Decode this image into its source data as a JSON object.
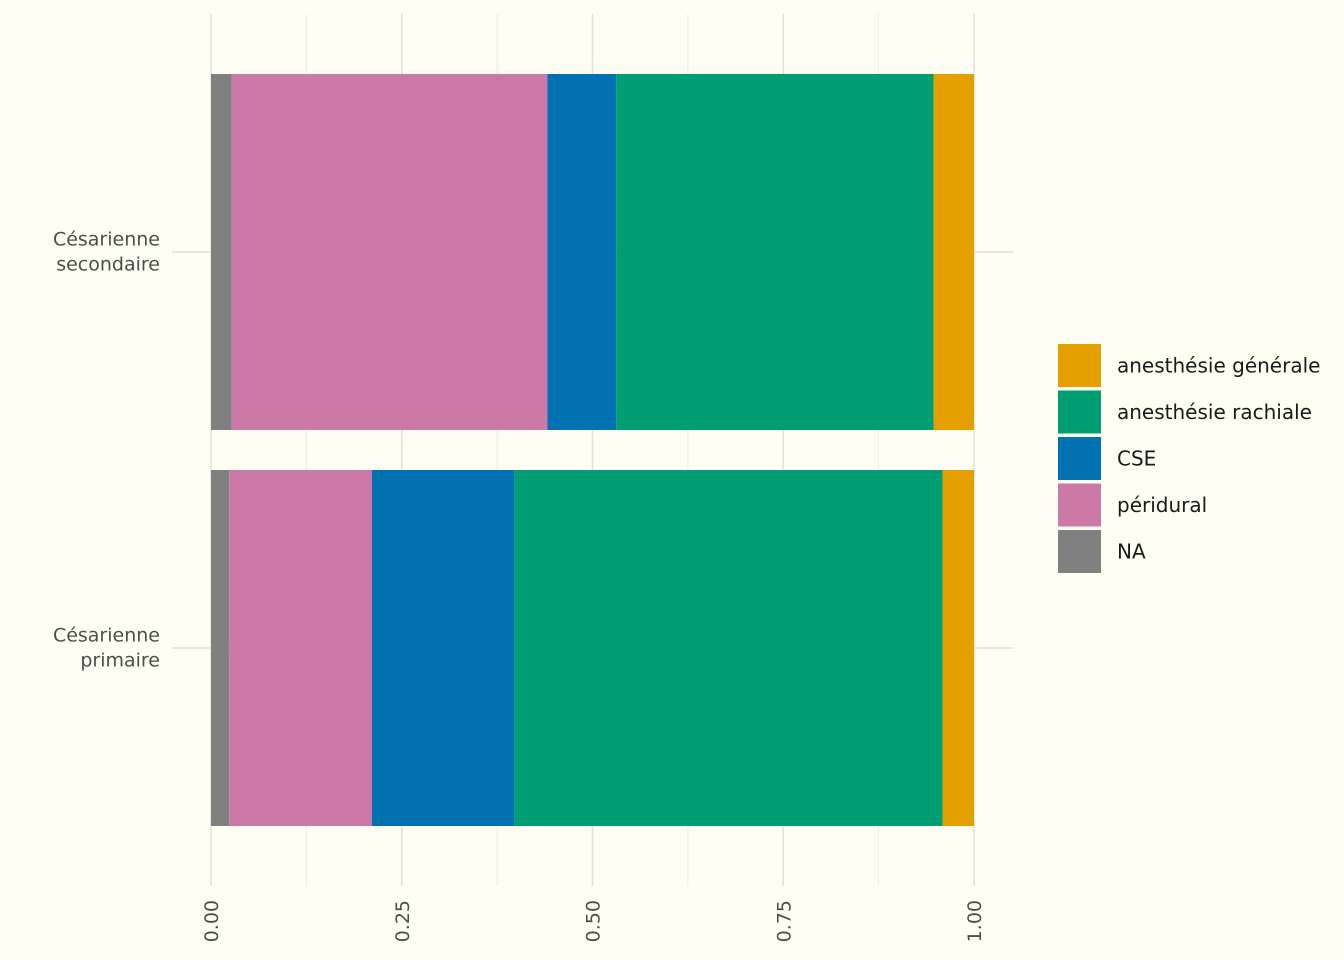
{
  "chart_data": {
    "type": "bar",
    "orientation": "horizontal",
    "stacked": true,
    "categories": [
      "Césarienne\nsecondaire",
      "Césarienne\nprimaire"
    ],
    "xlim": [
      0,
      1
    ],
    "x_ticks": [
      "0.00",
      "0.25",
      "0.50",
      "0.75",
      "1.00"
    ],
    "x_tick_values": [
      0,
      0.25,
      0.5,
      0.75,
      1
    ],
    "grid": true,
    "legend_position": "right",
    "series": [
      {
        "name": "NA",
        "color": "#808080",
        "values": [
          0.027,
          0.024
        ]
      },
      {
        "name": "péridural",
        "color": "#cc79a7",
        "values": [
          0.414,
          0.187
        ]
      },
      {
        "name": "CSE",
        "color": "#0072b2",
        "values": [
          0.09,
          0.187
        ]
      },
      {
        "name": "anesthésie rachiale",
        "color": "#009e73",
        "values": [
          0.416,
          0.561
        ]
      },
      {
        "name": "anesthésie générale",
        "color": "#e69f00",
        "values": [
          0.053,
          0.041
        ]
      }
    ],
    "legend_order": [
      "anesthésie générale",
      "anesthésie rachiale",
      "CSE",
      "péridural",
      "NA"
    ]
  }
}
